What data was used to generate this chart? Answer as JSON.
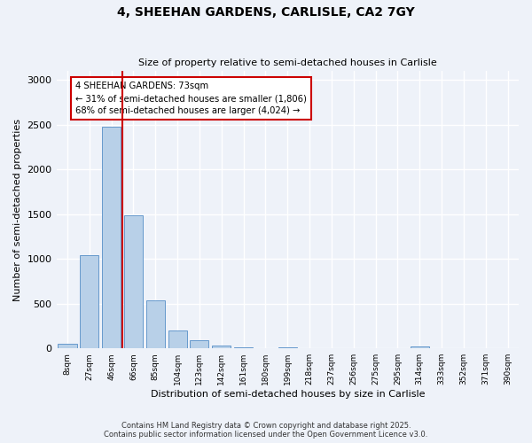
{
  "title_line1": "4, SHEEHAN GARDENS, CARLISLE, CA2 7GY",
  "title_line2": "Size of property relative to semi-detached houses in Carlisle",
  "xlabel": "Distribution of semi-detached houses by size in Carlisle",
  "ylabel": "Number of semi-detached properties",
  "categories": [
    "8sqm",
    "27sqm",
    "46sqm",
    "66sqm",
    "85sqm",
    "104sqm",
    "123sqm",
    "142sqm",
    "161sqm",
    "180sqm",
    "199sqm",
    "218sqm",
    "237sqm",
    "256sqm",
    "275sqm",
    "295sqm",
    "314sqm",
    "333sqm",
    "352sqm",
    "371sqm",
    "390sqm"
  ],
  "values": [
    55,
    1045,
    2480,
    1490,
    540,
    200,
    90,
    35,
    15,
    5,
    15,
    0,
    5,
    0,
    0,
    0,
    20,
    0,
    0,
    0,
    0
  ],
  "bar_color": "#b8d0e8",
  "bar_edge_color": "#6699cc",
  "vline_x": 2.5,
  "vline_color": "#cc0000",
  "annotation_box_text": "4 SHEEHAN GARDENS: 73sqm\n← 31% of semi-detached houses are smaller (1,806)\n68% of semi-detached houses are larger (4,024) →",
  "ylim": [
    0,
    3100
  ],
  "yticks": [
    0,
    500,
    1000,
    1500,
    2000,
    2500,
    3000
  ],
  "background_color": "#eef2f9",
  "grid_color": "#ffffff",
  "footer_line1": "Contains HM Land Registry data © Crown copyright and database right 2025.",
  "footer_line2": "Contains public sector information licensed under the Open Government Licence v3.0."
}
